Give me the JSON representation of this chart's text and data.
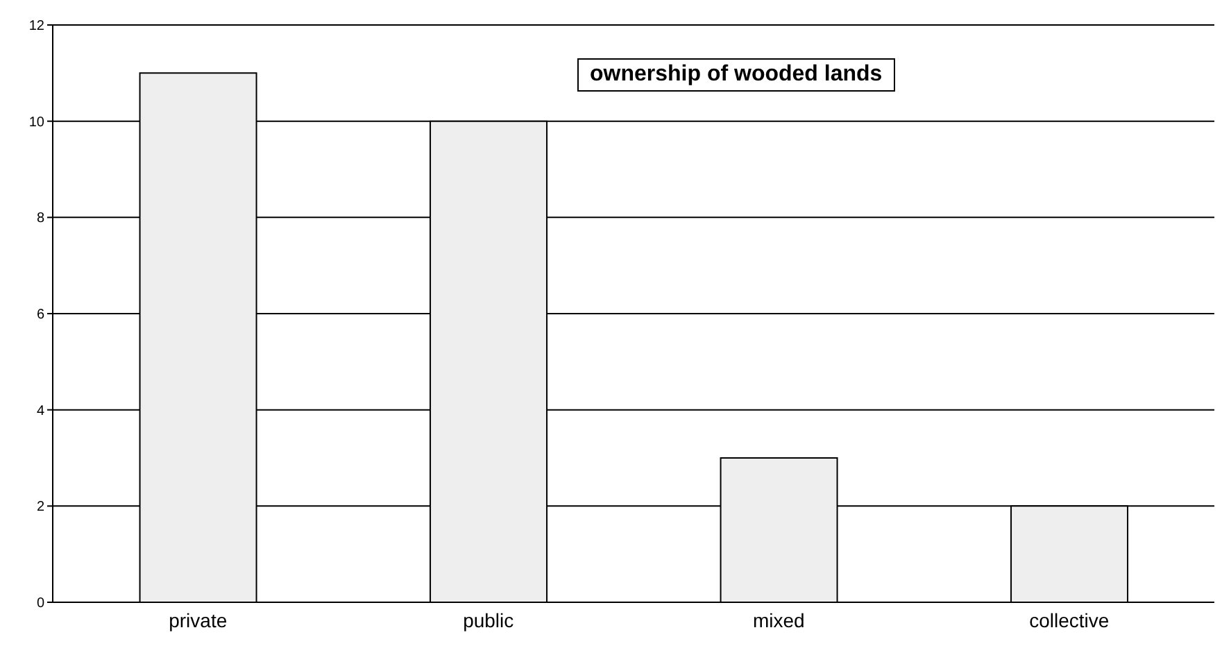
{
  "chart_data": {
    "type": "bar",
    "title": "ownership of wooded lands",
    "categories": [
      "private",
      "public",
      "mixed",
      "collective"
    ],
    "values": [
      11,
      10,
      3,
      2
    ],
    "color": "#eeeeee",
    "ylim": [
      0,
      12
    ],
    "yticks": [
      0,
      2,
      4,
      6,
      8,
      10,
      12
    ],
    "grid": "y"
  }
}
